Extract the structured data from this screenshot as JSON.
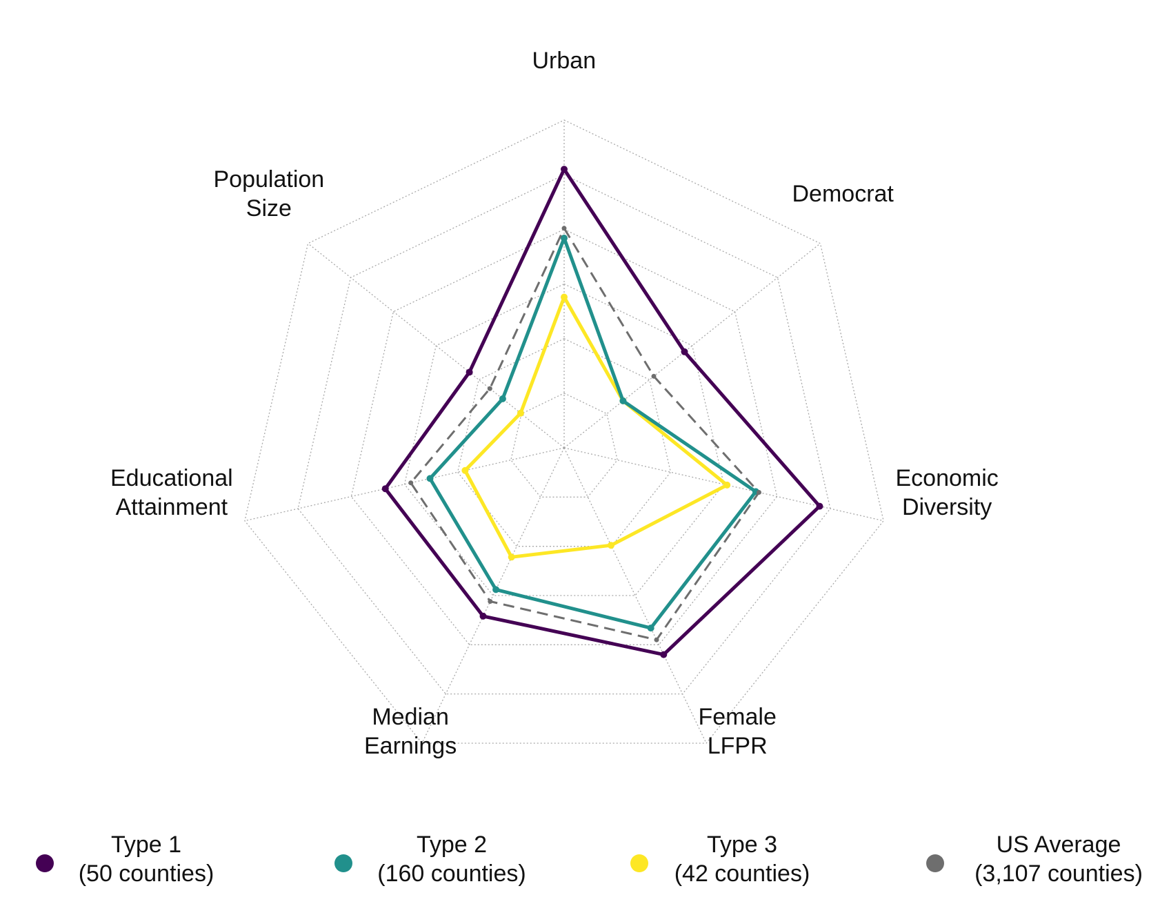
{
  "chart_data": {
    "type": "radar",
    "axes": [
      "Urban",
      "Democrat",
      "Economic Diversity",
      "Female LFPR",
      "Median Earnings",
      "Educational Attainment",
      "Population Size"
    ],
    "axis_labels": [
      [
        "Urban"
      ],
      [
        "Democrat"
      ],
      [
        "Economic",
        "Diversity"
      ],
      [
        "Female",
        "LFPR"
      ],
      [
        "Median",
        "Earnings"
      ],
      [
        "Educational",
        "Attainment"
      ],
      [
        "Population",
        "Size"
      ]
    ],
    "rlim": [
      0,
      1
    ],
    "grid": true,
    "grid_rings": 6,
    "series": [
      {
        "name": "Type 1",
        "count_label": "(50 counties)",
        "color": "#440154",
        "line": "solid",
        "values": [
          0.85,
          0.47,
          0.8,
          0.7,
          0.57,
          0.56,
          0.37
        ]
      },
      {
        "name": "Type 2",
        "count_label": "(160 counties)",
        "color": "#21908C",
        "line": "solid",
        "values": [
          0.64,
          0.23,
          0.6,
          0.61,
          0.48,
          0.42,
          0.24
        ]
      },
      {
        "name": "Type 3",
        "count_label": "(42 counties)",
        "color": "#FDE725",
        "line": "solid",
        "values": [
          0.46,
          0.23,
          0.51,
          0.33,
          0.37,
          0.31,
          0.17
        ]
      },
      {
        "name": "US Average",
        "count_label": "(3,107 counties)",
        "color": "#6E6E6E",
        "line": "dashed",
        "values": [
          0.67,
          0.35,
          0.61,
          0.65,
          0.52,
          0.48,
          0.29
        ]
      }
    ],
    "legend_position": "bottom"
  }
}
